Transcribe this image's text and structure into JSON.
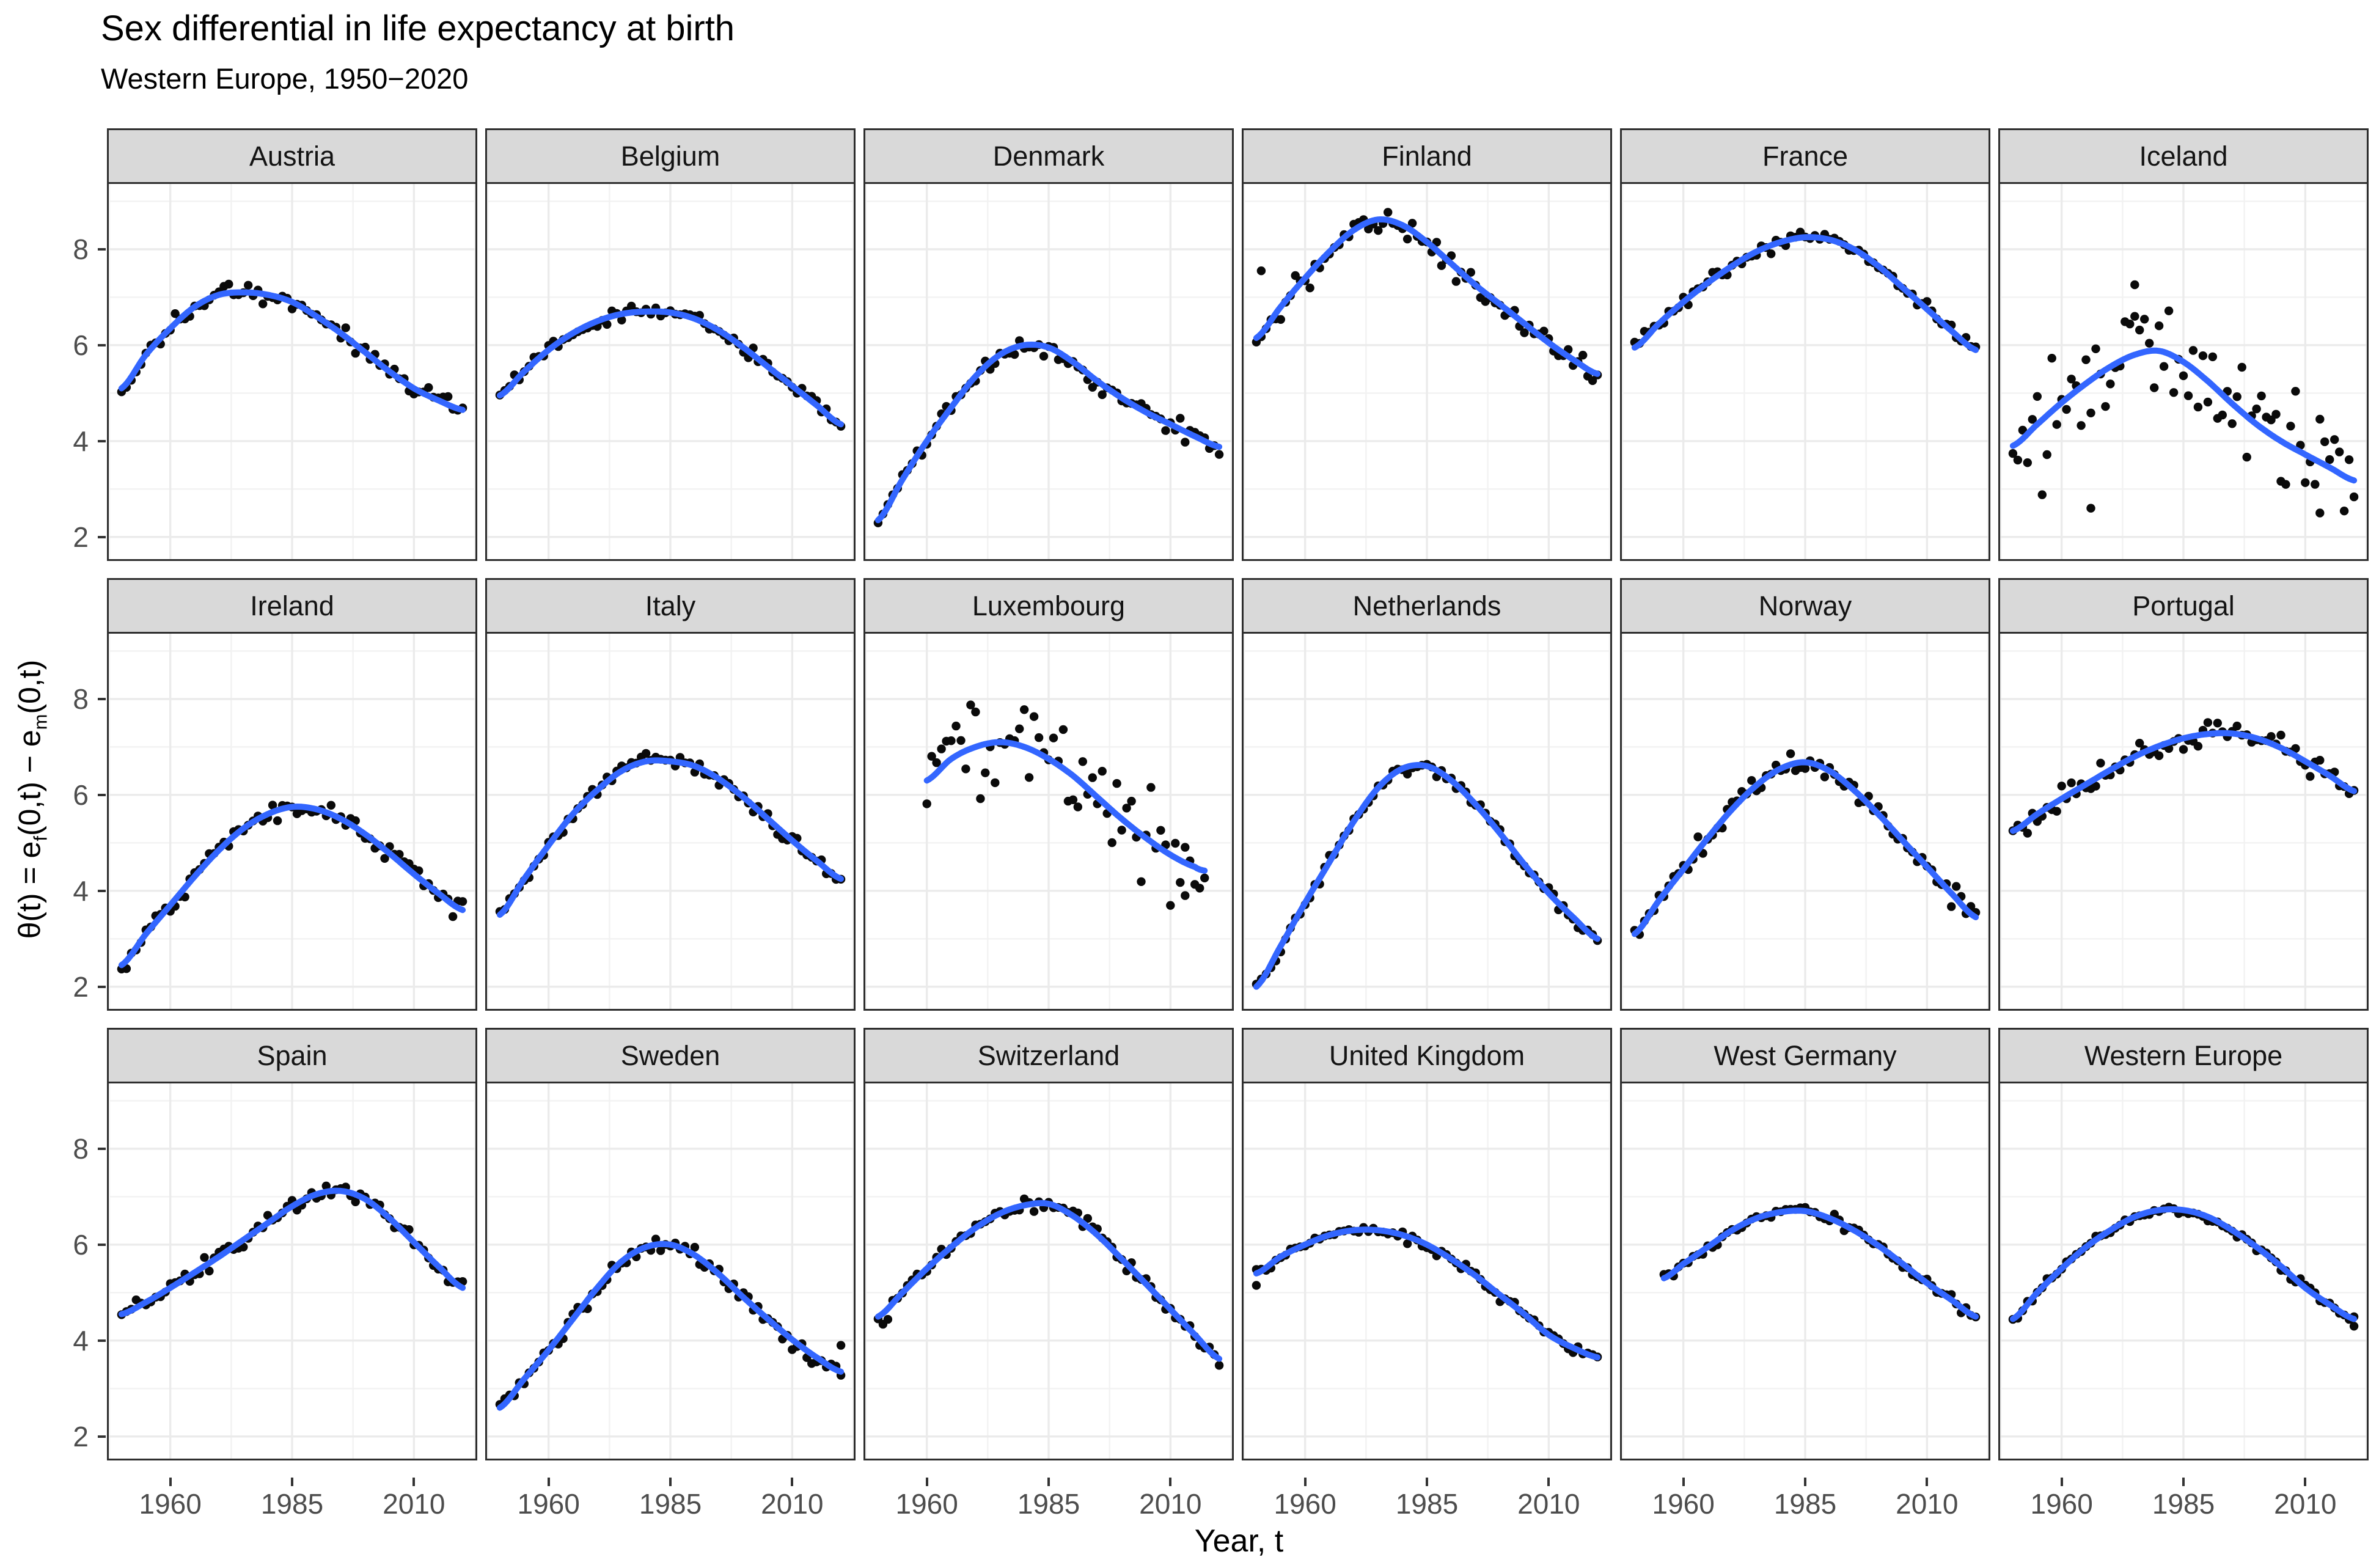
{
  "header": {
    "title": "Sex differential in life expectancy at birth",
    "subtitle": "Western Europe, 1950−2020"
  },
  "axes": {
    "x_label": "Year, t",
    "y_label_parts": [
      "θ(t) = e",
      "f",
      "(0,t) − e",
      "m",
      "(0,t)"
    ],
    "x_ticks": [
      1960,
      1985,
      2010
    ],
    "y_ticks": [
      8,
      6,
      4,
      2
    ],
    "x_minor": [
      1947.5,
      1972.5,
      1997.5,
      2022.5
    ],
    "y_minor": [
      3,
      5,
      7,
      9
    ],
    "x_range": [
      1947,
      2023
    ],
    "y_range": [
      1.5,
      9.4
    ],
    "grid": "on",
    "legend": "none"
  },
  "style": {
    "smooth_color": "#3366FF",
    "point_color": "#0a0a0a",
    "strip_bg": "#d9d9d9",
    "panel_bg": "#ffffff",
    "panel_border": "#2e2e2e",
    "grid_major": "#ebebeb",
    "grid_minor": "#f2f2f2",
    "tick_text": "#4d4d4d"
  },
  "chart_data": {
    "type": "scatter",
    "overlay": "loess-smooth-line",
    "x_unit": "year",
    "y_unit": "female minus male life expectancy at birth, years",
    "facets": [
      {
        "label": "Austria",
        "anchor_years": [
          1950,
          1955,
          1960,
          1965,
          1970,
          1975,
          1980,
          1985,
          1990,
          1995,
          2000,
          2005,
          2010,
          2015,
          2020
        ],
        "smooth": [
          5.1,
          5.8,
          6.35,
          6.8,
          7.05,
          7.1,
          7.05,
          6.9,
          6.6,
          6.25,
          5.85,
          5.45,
          5.1,
          4.85,
          4.65
        ],
        "start": 1950,
        "end": 2020,
        "noise_sd": 0.09,
        "outliers": []
      },
      {
        "label": "Belgium",
        "anchor_years": [
          1950,
          1955,
          1960,
          1965,
          1970,
          1975,
          1980,
          1985,
          1990,
          1995,
          2000,
          2005,
          2010,
          2015,
          2020
        ],
        "smooth": [
          4.95,
          5.45,
          5.9,
          6.25,
          6.5,
          6.65,
          6.7,
          6.68,
          6.55,
          6.3,
          5.95,
          5.55,
          5.15,
          4.75,
          4.35
        ],
        "start": 1950,
        "end": 2020,
        "noise_sd": 0.08,
        "outliers": []
      },
      {
        "label": "Denmark",
        "anchor_years": [
          1950,
          1955,
          1960,
          1965,
          1970,
          1975,
          1980,
          1985,
          1990,
          1995,
          2000,
          2005,
          2010,
          2015,
          2020
        ],
        "smooth": [
          2.35,
          3.2,
          4.0,
          4.7,
          5.35,
          5.8,
          6.0,
          5.95,
          5.65,
          5.25,
          4.9,
          4.6,
          4.35,
          4.1,
          3.88
        ],
        "start": 1950,
        "end": 2020,
        "noise_sd": 0.09,
        "outliers": []
      },
      {
        "label": "Finland",
        "anchor_years": [
          1950,
          1955,
          1960,
          1965,
          1970,
          1975,
          1980,
          1985,
          1990,
          1995,
          2000,
          2005,
          2010,
          2015,
          2020
        ],
        "smooth": [
          6.15,
          6.8,
          7.4,
          7.95,
          8.4,
          8.62,
          8.5,
          8.15,
          7.7,
          7.25,
          6.85,
          6.45,
          6.05,
          5.7,
          5.4
        ],
        "start": 1950,
        "end": 2020,
        "noise_sd": 0.14,
        "outliers": [
          [
            1951,
            7.55
          ]
        ]
      },
      {
        "label": "France",
        "anchor_years": [
          1950,
          1955,
          1960,
          1965,
          1970,
          1975,
          1980,
          1985,
          1990,
          1995,
          2000,
          2005,
          2010,
          2015,
          2020
        ],
        "smooth": [
          5.95,
          6.45,
          6.9,
          7.3,
          7.65,
          7.95,
          8.15,
          8.25,
          8.2,
          8.0,
          7.65,
          7.2,
          6.75,
          6.3,
          5.9
        ],
        "start": 1950,
        "end": 2020,
        "noise_sd": 0.07,
        "outliers": []
      },
      {
        "label": "Iceland",
        "anchor_years": [
          1950,
          1955,
          1960,
          1965,
          1970,
          1975,
          1980,
          1985,
          1990,
          1995,
          2000,
          2005,
          2010,
          2015,
          2020
        ],
        "smooth": [
          3.9,
          4.35,
          4.8,
          5.2,
          5.55,
          5.8,
          5.88,
          5.65,
          5.25,
          4.78,
          4.35,
          4.0,
          3.72,
          3.45,
          3.18
        ],
        "start": 1950,
        "end": 2020,
        "noise_sd": 0.6,
        "outliers": [
          [
            1966,
            2.6
          ],
          [
            1975,
            6.6
          ],
          [
            2013,
            2.5
          ]
        ]
      },
      {
        "label": "Ireland",
        "anchor_years": [
          1950,
          1955,
          1960,
          1965,
          1970,
          1975,
          1980,
          1985,
          1990,
          1995,
          2000,
          2005,
          2010,
          2015,
          2020
        ],
        "smooth": [
          2.45,
          3.1,
          3.7,
          4.3,
          4.85,
          5.3,
          5.6,
          5.75,
          5.7,
          5.5,
          5.18,
          4.78,
          4.35,
          3.95,
          3.6
        ],
        "start": 1950,
        "end": 2020,
        "noise_sd": 0.11,
        "outliers": []
      },
      {
        "label": "Italy",
        "anchor_years": [
          1950,
          1955,
          1960,
          1965,
          1970,
          1975,
          1980,
          1985,
          1990,
          1995,
          2000,
          2005,
          2010,
          2015,
          2020
        ],
        "smooth": [
          3.5,
          4.25,
          4.95,
          5.6,
          6.1,
          6.5,
          6.7,
          6.7,
          6.6,
          6.33,
          5.95,
          5.5,
          5.05,
          4.63,
          4.25
        ],
        "start": 1950,
        "end": 2020,
        "noise_sd": 0.07,
        "outliers": []
      },
      {
        "label": "Luxembourg",
        "anchor_years": [
          1960,
          1965,
          1970,
          1975,
          1980,
          1985,
          1990,
          1995,
          2000,
          2005,
          2010,
          2015,
          2017
        ],
        "smooth": [
          6.3,
          6.75,
          7.0,
          7.1,
          7.0,
          6.75,
          6.4,
          5.95,
          5.5,
          5.1,
          4.75,
          4.5,
          4.42
        ],
        "start": 1960,
        "end": 2017,
        "noise_sd": 0.5,
        "outliers": [
          [
            2013,
            3.9
          ]
        ]
      },
      {
        "label": "Netherlands",
        "anchor_years": [
          1950,
          1955,
          1960,
          1965,
          1970,
          1975,
          1980,
          1985,
          1990,
          1995,
          2000,
          2005,
          2010,
          2015,
          2020
        ],
        "smooth": [
          2.0,
          2.85,
          3.75,
          4.6,
          5.45,
          6.15,
          6.55,
          6.6,
          6.3,
          5.8,
          5.2,
          4.55,
          3.95,
          3.45,
          3.0
        ],
        "start": 1950,
        "end": 2020,
        "noise_sd": 0.07,
        "outliers": []
      },
      {
        "label": "Norway",
        "anchor_years": [
          1950,
          1955,
          1960,
          1965,
          1970,
          1975,
          1980,
          1985,
          1990,
          1995,
          2000,
          2005,
          2010,
          2015,
          2020
        ],
        "smooth": [
          3.1,
          3.8,
          4.45,
          5.1,
          5.7,
          6.2,
          6.55,
          6.68,
          6.5,
          6.1,
          5.6,
          5.05,
          4.5,
          3.95,
          3.45
        ],
        "start": 1950,
        "end": 2020,
        "noise_sd": 0.11,
        "outliers": []
      },
      {
        "label": "Portugal",
        "anchor_years": [
          1950,
          1955,
          1960,
          1965,
          1970,
          1975,
          1980,
          1985,
          1990,
          1995,
          2000,
          2005,
          2010,
          2015,
          2020
        ],
        "smooth": [
          5.25,
          5.6,
          5.92,
          6.22,
          6.52,
          6.8,
          7.02,
          7.18,
          7.27,
          7.28,
          7.18,
          6.98,
          6.7,
          6.4,
          6.08
        ],
        "start": 1950,
        "end": 2020,
        "noise_sd": 0.12,
        "outliers": []
      },
      {
        "label": "Spain",
        "anchor_years": [
          1950,
          1955,
          1960,
          1965,
          1970,
          1975,
          1980,
          1985,
          1990,
          1995,
          2000,
          2005,
          2010,
          2015,
          2020
        ],
        "smooth": [
          4.55,
          4.8,
          5.1,
          5.42,
          5.75,
          6.1,
          6.45,
          6.8,
          7.05,
          7.12,
          6.95,
          6.55,
          6.05,
          5.55,
          5.1
        ],
        "start": 1950,
        "end": 2020,
        "noise_sd": 0.08,
        "outliers": []
      },
      {
        "label": "Sweden",
        "anchor_years": [
          1950,
          1955,
          1960,
          1965,
          1970,
          1975,
          1980,
          1985,
          1990,
          1995,
          2000,
          2005,
          2010,
          2015,
          2020
        ],
        "smooth": [
          2.6,
          3.2,
          3.8,
          4.45,
          5.1,
          5.65,
          5.95,
          6.0,
          5.78,
          5.38,
          4.9,
          4.45,
          4.02,
          3.65,
          3.35
        ],
        "start": 1950,
        "end": 2020,
        "noise_sd": 0.09,
        "outliers": [
          [
            2020,
            3.9
          ]
        ]
      },
      {
        "label": "Switzerland",
        "anchor_years": [
          1950,
          1955,
          1960,
          1965,
          1970,
          1975,
          1980,
          1985,
          1990,
          1995,
          2000,
          2005,
          2010,
          2015,
          2020
        ],
        "smooth": [
          4.5,
          5.0,
          5.5,
          5.95,
          6.35,
          6.65,
          6.82,
          6.85,
          6.6,
          6.2,
          5.7,
          5.18,
          4.65,
          4.12,
          3.62
        ],
        "start": 1950,
        "end": 2020,
        "noise_sd": 0.09,
        "outliers": []
      },
      {
        "label": "United Kingdom",
        "anchor_years": [
          1950,
          1955,
          1960,
          1965,
          1970,
          1975,
          1980,
          1985,
          1990,
          1995,
          2000,
          2005,
          2010,
          2015,
          2020
        ],
        "smooth": [
          5.4,
          5.75,
          6.0,
          6.2,
          6.3,
          6.3,
          6.2,
          6.0,
          5.7,
          5.35,
          4.95,
          4.55,
          4.12,
          3.85,
          3.65
        ],
        "start": 1950,
        "end": 2020,
        "noise_sd": 0.06,
        "outliers": [
          [
            1950,
            5.15
          ]
        ]
      },
      {
        "label": "West Germany",
        "anchor_years": [
          1956,
          1960,
          1965,
          1970,
          1975,
          1980,
          1985,
          1990,
          1995,
          2000,
          2005,
          2010,
          2015,
          2020
        ],
        "smooth": [
          5.3,
          5.6,
          5.95,
          6.3,
          6.55,
          6.68,
          6.7,
          6.55,
          6.3,
          5.98,
          5.6,
          5.2,
          4.85,
          4.5
        ],
        "start": 1956,
        "end": 2020,
        "noise_sd": 0.06,
        "outliers": []
      },
      {
        "label": "Western Europe",
        "anchor_years": [
          1950,
          1955,
          1960,
          1965,
          1970,
          1975,
          1980,
          1985,
          1990,
          1995,
          2000,
          2005,
          2010,
          2015,
          2020
        ],
        "smooth": [
          4.45,
          5.0,
          5.5,
          5.95,
          6.3,
          6.58,
          6.72,
          6.72,
          6.58,
          6.3,
          5.95,
          5.55,
          5.1,
          4.75,
          4.45
        ],
        "start": 1950,
        "end": 2020,
        "noise_sd": 0.05,
        "outliers": [
          [
            2020,
            4.3
          ]
        ]
      }
    ]
  }
}
